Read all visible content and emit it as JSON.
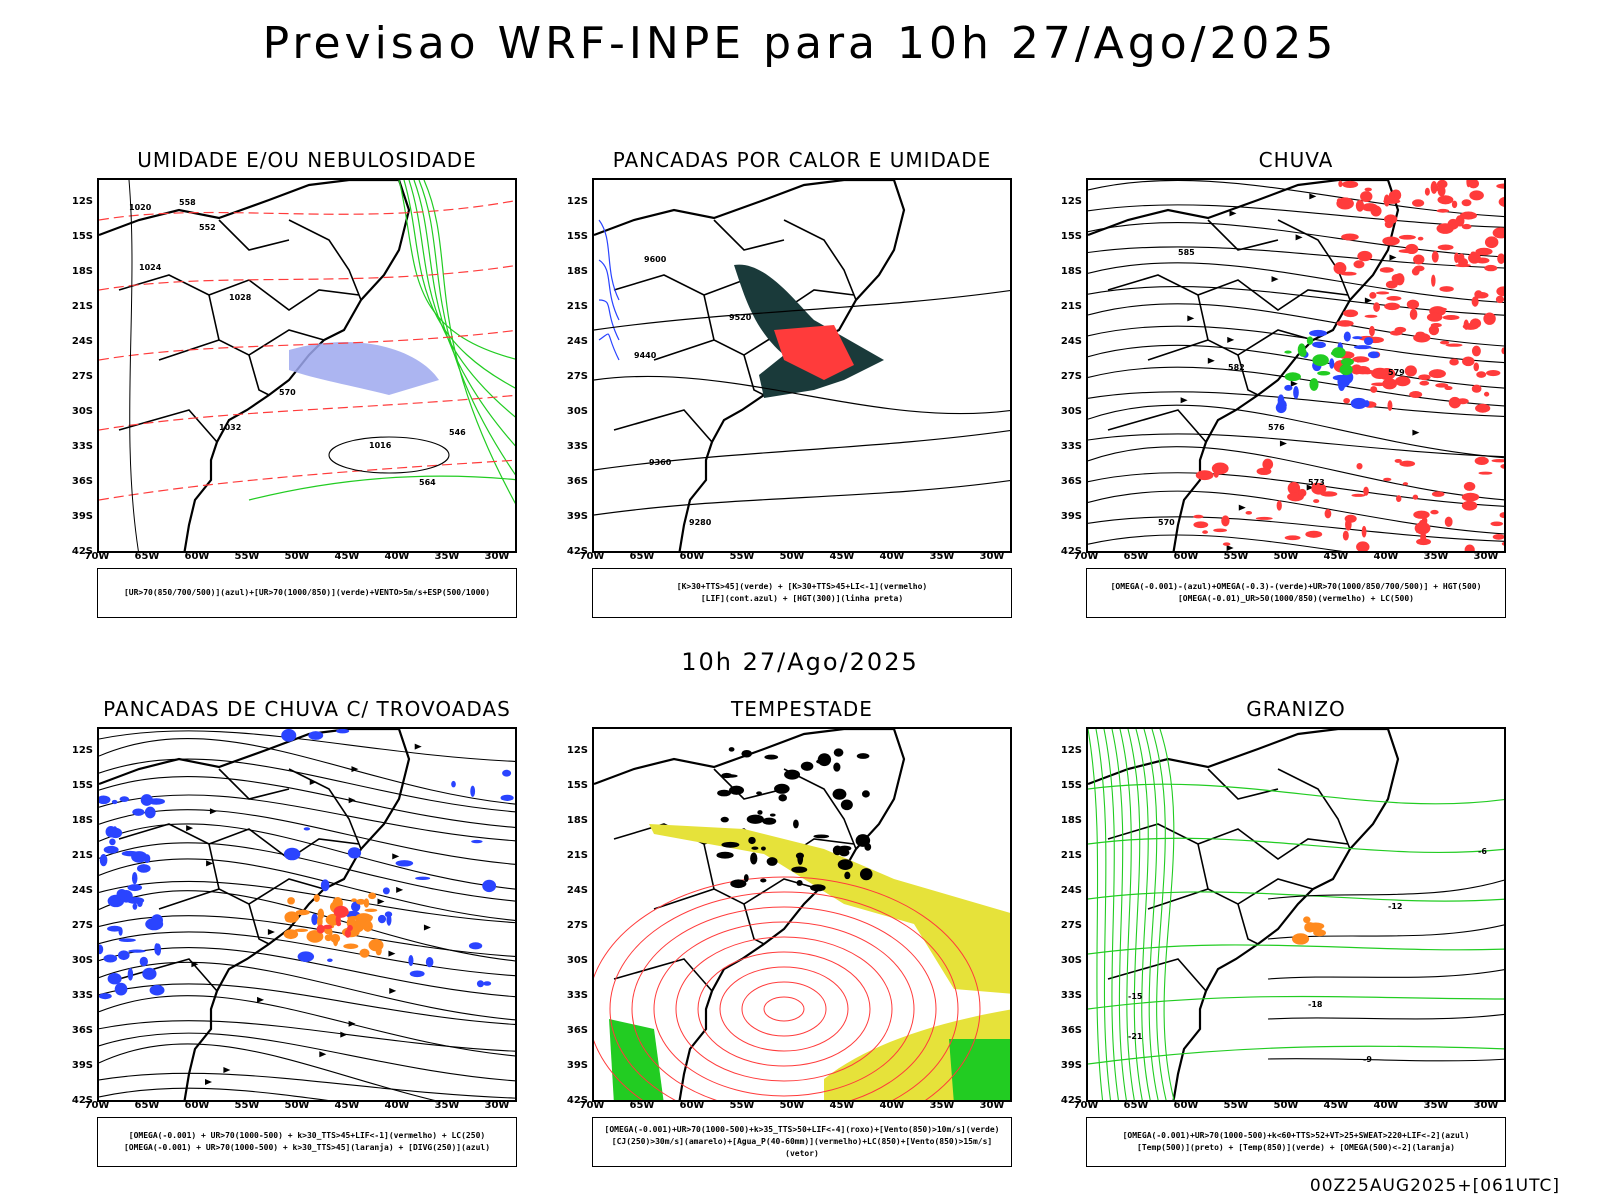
{
  "main_title": "Previsao WRF-INPE  para 10h 27/Ago/2025",
  "mid_time": "10h 27/Ago/2025",
  "run_stamp": "00Z25AUG2025+[061UTC]",
  "axes": {
    "lat_labels": [
      "12S",
      "15S",
      "18S",
      "21S",
      "24S",
      "27S",
      "30S",
      "33S",
      "36S",
      "39S",
      "42S"
    ],
    "lon_labels": [
      "70W",
      "65W",
      "60W",
      "55W",
      "50W",
      "45W",
      "40W",
      "35W",
      "30W"
    ]
  },
  "panels": [
    {
      "title": "UMIDADE E/OU NEBULOSIDADE",
      "legend": [
        "[UR>70(850/700/500)](azul)+[UR>70(1000/850)](verde)+VENTO>5m/s+ESP(500/1000)"
      ],
      "labels": [
        "1020",
        "1024",
        "1028",
        "1032",
        "1016",
        "570",
        "564",
        "558",
        "552",
        "546"
      ]
    },
    {
      "title": "PANCADAS POR CALOR E UMIDADE",
      "legend": [
        "[K>30+TTS>45](verde) + [K>30+TTS>45+LI<-1](vermelho)",
        "[LIF](cont.azul) + [HGT(300)](linha preta)"
      ],
      "labels": [
        "9600",
        "9520",
        "9440",
        "9360",
        "9280"
      ]
    },
    {
      "title": "CHUVA",
      "legend": [
        "[OMEGA(-0.001)-(azul)+OMEGA(-0.3)-(verde)+UR>70(1000/850/700/500)] + HGT(500)",
        "[OMEGA(-0.01)_UR>50(1000/850)(vermelho) + LC(500)"
      ],
      "labels": [
        "585",
        "582",
        "579",
        "576",
        "573",
        "570"
      ]
    },
    {
      "title": "PANCADAS DE CHUVA C/ TROVOADAS",
      "legend": [
        "[OMEGA(-0.001) + UR>70(1000-500) + k>30_TTS>45+LIF<-1](vermelho) + LC(250)",
        "[OMEGA(-0.001) + UR>70(1000-500) + k>30_TTS>45](laranja) + [DIVG(250)](azul)"
      ],
      "labels": []
    },
    {
      "title": "TEMPESTADE",
      "legend": [
        "[OMEGA(-0.001)+UR>70(1000-500)+k>35_TTS>50+LIF<-4](roxo)+[Vento(850)>10m/s](verde)",
        "[CJ(250)>30m/s](amarelo)+[Agua_P(40-60mm)](vermelho)+LC(850)+[Vento(850)>15m/s](vetor)"
      ],
      "labels": []
    },
    {
      "title": "GRANIZO",
      "legend": [
        "[OMEGA(-0.001)+UR>70(1000-500)+k<60+TTS>52+VT>25+SWEAT>220+LIF<-2](azul)",
        "[Temp(500)](preto) + [Temp(850)](verde) + [OMEGA(500)<-2](laranja)"
      ],
      "labels": [
        "-6",
        "-12",
        "-15",
        "-18",
        "-21",
        "-9"
      ]
    }
  ],
  "colors": {
    "red": "#ff3b3b",
    "green": "#22cc22",
    "blue": "#2a44ff",
    "orange": "#ff8a1e",
    "yellow": "#e6e23a",
    "navy": "#1a3a3a",
    "lavender": "#9ea8ee"
  }
}
